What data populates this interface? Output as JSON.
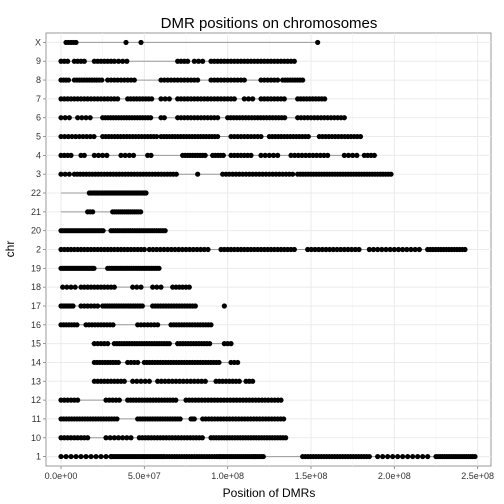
{
  "chart_data": {
    "type": "scatter",
    "title": "DMR positions on chromosomes",
    "xlabel": "Position of DMRs",
    "ylabel": "chr",
    "xlim": [
      -9000000.0,
      258000000.0
    ],
    "x_ticks": [
      0,
      50000000.0,
      100000000.0,
      150000000.0,
      200000000.0,
      250000000.0
    ],
    "x_tick_labels": [
      "0.0e+00",
      "5.0e+07",
      "1.0e+08",
      "1.5e+08",
      "2.0e+08",
      "2.5e+08"
    ],
    "categories": [
      "1",
      "10",
      "11",
      "12",
      "13",
      "14",
      "15",
      "16",
      "17",
      "18",
      "19",
      "2",
      "20",
      "21",
      "22",
      "3",
      "4",
      "5",
      "6",
      "7",
      "8",
      "9",
      "X"
    ],
    "grid": true,
    "point_color": "#000000",
    "line_color": "#999999",
    "background": "#ffffff",
    "panel_border": "#7f7f7f",
    "grid_color": "#ebebeb",
    "rows": [
      {
        "chr": "1",
        "range": [
          0.0,
          249000000.0
        ],
        "segments": [
          [
            0.0,
            30000000.0,
            3000000.0
          ],
          [
            30000000.0,
            62000000.0,
            1200000.0
          ],
          [
            62000000.0,
            95000000.0,
            1500000.0
          ],
          [
            95000000.0,
            122000000.0,
            1200000.0
          ],
          [
            145000000.0,
            185000000.0,
            1600000.0
          ],
          [
            190000000.0,
            220000000.0,
            3000000.0
          ],
          [
            225000000.0,
            249000000.0,
            1300000.0
          ]
        ]
      },
      {
        "chr": "10",
        "range": [
          0.0,
          135000000.0
        ],
        "segments": [
          [
            0.0,
            17000000.0,
            2000000.0
          ],
          [
            27000000.0,
            42000000.0,
            2500000.0
          ],
          [
            47000000.0,
            85000000.0,
            1800000.0
          ],
          [
            90000000.0,
            135000000.0,
            1600000.0
          ]
        ]
      },
      {
        "chr": "11",
        "range": [
          0.0,
          135000000.0
        ],
        "segments": [
          [
            0.0,
            35000000.0,
            1600000.0
          ],
          [
            46000000.0,
            72000000.0,
            1500000.0
          ],
          [
            78000000.0,
            80000000.0,
            1000000.0
          ],
          [
            85000000.0,
            135000000.0,
            1800000.0
          ]
        ]
      },
      {
        "chr": "12",
        "range": [
          0.0,
          133000000.0
        ],
        "segments": [
          [
            0.0,
            10000000.0,
            2000000.0
          ],
          [
            27000000.0,
            35000000.0,
            2000000.0
          ],
          [
            40000000.0,
            70000000.0,
            1700000.0
          ],
          [
            75000000.0,
            133000000.0,
            1900000.0
          ]
        ]
      },
      {
        "chr": "13",
        "range": [
          19000000.0,
          115000000.0
        ],
        "segments": [
          [
            20000000.0,
            38000000.0,
            2000000.0
          ],
          [
            43000000.0,
            55000000.0,
            2500000.0
          ],
          [
            58000000.0,
            88000000.0,
            2200000.0
          ],
          [
            93000000.0,
            108000000.0,
            2000000.0
          ],
          [
            111000000.0,
            115000000.0,
            2000000.0
          ]
        ]
      },
      {
        "chr": "14",
        "range": [
          19000000.0,
          106000000.0
        ],
        "segments": [
          [
            20000000.0,
            35000000.0,
            1600000.0
          ],
          [
            40000000.0,
            47000000.0,
            2000000.0
          ],
          [
            50000000.0,
            95000000.0,
            1600000.0
          ],
          [
            102000000.0,
            106000000.0,
            2000000.0
          ]
        ]
      },
      {
        "chr": "15",
        "range": [
          18000000.0,
          102000000.0
        ],
        "segments": [
          [
            20000000.0,
            28000000.0,
            2000000.0
          ],
          [
            32000000.0,
            65000000.0,
            1500000.0
          ],
          [
            70000000.0,
            90000000.0,
            1600000.0
          ],
          [
            98000000.0,
            102000000.0,
            2000000.0
          ]
        ]
      },
      {
        "chr": "16",
        "range": [
          0.0,
          90000000.0
        ],
        "segments": [
          [
            0.0,
            10000000.0,
            1600000.0
          ],
          [
            15000000.0,
            32000000.0,
            1800000.0
          ],
          [
            46000000.0,
            58000000.0,
            2000000.0
          ],
          [
            66000000.0,
            90000000.0,
            1600000.0
          ]
        ]
      },
      {
        "chr": "17",
        "range": [
          0.0,
          81000000.0
        ],
        "segments": [
          [
            0.0,
            8000000.0,
            1200000.0
          ],
          [
            12000000.0,
            22000000.0,
            2000000.0
          ],
          [
            25000000.0,
            50000000.0,
            1400000.0
          ],
          [
            55000000.0,
            81000000.0,
            1600000.0
          ],
          [
            98000000.0,
            98000000.0,
            1000000.0
          ]
        ]
      },
      {
        "chr": "18",
        "range": [
          1000000.0,
          78000000.0
        ],
        "segments": [
          [
            1000000.0,
            10000000.0,
            2500000.0
          ],
          [
            12000000.0,
            32000000.0,
            2000000.0
          ],
          [
            43000000.0,
            48000000.0,
            2500000.0
          ],
          [
            55000000.0,
            62000000.0,
            2500000.0
          ],
          [
            67000000.0,
            78000000.0,
            2000000.0
          ]
        ]
      },
      {
        "chr": "19",
        "range": [
          0.0,
          59000000.0
        ],
        "segments": [
          [
            0.0,
            20000000.0,
            900000.0
          ],
          [
            28000000.0,
            59000000.0,
            1100000.0
          ]
        ]
      },
      {
        "chr": "2",
        "range": [
          0.0,
          243000000.0
        ],
        "segments": [
          [
            0.0,
            50000000.0,
            2000000.0
          ],
          [
            53000000.0,
            90000000.0,
            2200000.0
          ],
          [
            96000000.0,
            140000000.0,
            2000000.0
          ],
          [
            148000000.0,
            180000000.0,
            2200000.0
          ],
          [
            185000000.0,
            215000000.0,
            2500000.0
          ],
          [
            220000000.0,
            243000000.0,
            1600000.0
          ]
        ]
      },
      {
        "chr": "20",
        "range": [
          0.0,
          63000000.0
        ],
        "segments": [
          [
            0.0,
            26000000.0,
            1100000.0
          ],
          [
            30000000.0,
            63000000.0,
            1300000.0
          ]
        ]
      },
      {
        "chr": "21",
        "range": [
          0.0,
          48000000.0
        ],
        "segments": [
          [
            16000000.0,
            19000000.0,
            1500000.0
          ],
          [
            31000000.0,
            48000000.0,
            1200000.0
          ]
        ]
      },
      {
        "chr": "22",
        "range": [
          0.0,
          51000000.0
        ],
        "segments": [
          [
            17000000.0,
            51000000.0,
            1000000.0
          ]
        ]
      },
      {
        "chr": "3",
        "range": [
          0.0,
          198000000.0
        ],
        "segments": [
          [
            0.0,
            5000000.0,
            2500000.0
          ],
          [
            8000000.0,
            70000000.0,
            1800000.0
          ],
          [
            82000000.0,
            82000000.0,
            1000000.0
          ],
          [
            97000000.0,
            140000000.0,
            2000000.0
          ],
          [
            142000000.0,
            198000000.0,
            1600000.0
          ]
        ]
      },
      {
        "chr": "4",
        "range": [
          0.0,
          190000000.0
        ],
        "segments": [
          [
            0.0,
            7000000.0,
            2000000.0
          ],
          [
            12000000.0,
            15000000.0,
            2000000.0
          ],
          [
            20000000.0,
            28000000.0,
            2500000.0
          ],
          [
            36000000.0,
            45000000.0,
            2500000.0
          ],
          [
            52000000.0,
            54000000.0,
            2000000.0
          ],
          [
            73000000.0,
            87000000.0,
            1500000.0
          ],
          [
            91000000.0,
            98000000.0,
            1600000.0
          ],
          [
            102000000.0,
            115000000.0,
            2000000.0
          ],
          [
            120000000.0,
            132000000.0,
            2500000.0
          ],
          [
            138000000.0,
            162000000.0,
            2200000.0
          ],
          [
            170000000.0,
            178000000.0,
            2500000.0
          ],
          [
            182000000.0,
            188000000.0,
            2000000.0
          ]
        ]
      },
      {
        "chr": "5",
        "range": [
          0.0,
          181000000.0
        ],
        "segments": [
          [
            0.0,
            20000000.0,
            2200000.0
          ],
          [
            25000000.0,
            58000000.0,
            1800000.0
          ],
          [
            60000000.0,
            95000000.0,
            1700000.0
          ],
          [
            102000000.0,
            120000000.0,
            2000000.0
          ],
          [
            125000000.0,
            150000000.0,
            1800000.0
          ],
          [
            155000000.0,
            181000000.0,
            1900000.0
          ]
        ]
      },
      {
        "chr": "6",
        "range": [
          0.0,
          170000000.0
        ],
        "segments": [
          [
            0.0,
            5000000.0,
            2500000.0
          ],
          [
            10000000.0,
            18000000.0,
            2500000.0
          ],
          [
            25000000.0,
            55000000.0,
            1600000.0
          ],
          [
            60000000.0,
            63000000.0,
            2000000.0
          ],
          [
            70000000.0,
            95000000.0,
            2000000.0
          ],
          [
            100000000.0,
            135000000.0,
            1800000.0
          ],
          [
            142000000.0,
            170000000.0,
            2000000.0
          ]
        ]
      },
      {
        "chr": "7",
        "range": [
          0.0,
          159000000.0
        ],
        "segments": [
          [
            0.0,
            8000000.0,
            2000000.0
          ],
          [
            10000000.0,
            35000000.0,
            2000000.0
          ],
          [
            40000000.0,
            55000000.0,
            1800000.0
          ],
          [
            60000000.0,
            65000000.0,
            2500000.0
          ],
          [
            70000000.0,
            105000000.0,
            2000000.0
          ],
          [
            110000000.0,
            115000000.0,
            2500000.0
          ],
          [
            120000000.0,
            135000000.0,
            2000000.0
          ],
          [
            142000000.0,
            159000000.0,
            1800000.0
          ]
        ]
      },
      {
        "chr": "8",
        "range": [
          0.0,
          146000000.0
        ],
        "segments": [
          [
            0.0,
            5000000.0,
            1500000.0
          ],
          [
            8000000.0,
            25000000.0,
            1500000.0
          ],
          [
            28000000.0,
            45000000.0,
            2000000.0
          ],
          [
            60000000.0,
            82000000.0,
            2000000.0
          ],
          [
            90000000.0,
            110000000.0,
            2000000.0
          ],
          [
            120000000.0,
            130000000.0,
            2000000.0
          ],
          [
            133000000.0,
            146000000.0,
            1500000.0
          ]
        ]
      },
      {
        "chr": "9",
        "range": [
          0.0,
          141000000.0
        ],
        "segments": [
          [
            0.0,
            5000000.0,
            2000000.0
          ],
          [
            8000000.0,
            14000000.0,
            2000000.0
          ],
          [
            20000000.0,
            30000000.0,
            2000000.0
          ],
          [
            32000000.0,
            40000000.0,
            2500000.0
          ],
          [
            70000000.0,
            76000000.0,
            2000000.0
          ],
          [
            80000000.0,
            85000000.0,
            2500000.0
          ],
          [
            90000000.0,
            141000000.0,
            2000000.0
          ]
        ]
      },
      {
        "chr": "X",
        "range": [
          3000000.0,
          154000000.0
        ],
        "segments": [
          [
            3000000.0,
            9000000.0,
            1500000.0
          ],
          [
            39000000.0,
            39000000.0,
            1000000.0
          ],
          [
            48000000.0,
            48000000.0,
            1000000.0
          ],
          [
            154000000.0,
            154000000.0,
            1000000.0
          ]
        ]
      }
    ]
  }
}
